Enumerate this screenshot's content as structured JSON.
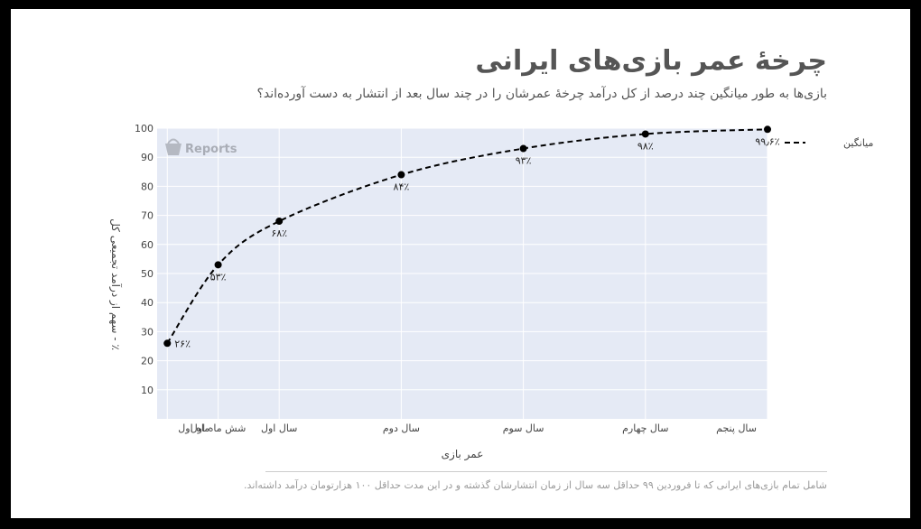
{
  "header": {
    "title": "چرخهٔ عمر بازی‌های ایرانی",
    "subtitle": "بازی‌ها به طور میانگین چند درصد از کل درآمد چرخهٔ عمرشان را در چند سال بعد از انتشار به دست آورده‌اند؟"
  },
  "watermark": {
    "text": "Reports",
    "icon": "basket-icon"
  },
  "footnote": "شامل تمام بازی‌های ایرانی که تا فروردین ۹۹ حداقل سه سال از زمان انتشارشان گذشته و در این مدت حداقل ۱۰۰ هزارتومان درآمد داشته‌اند.",
  "chart_data": {
    "type": "line",
    "title": "چرخهٔ عمر بازی‌های ایرانی",
    "xlabel": "عمر بازی",
    "ylabel": "٪ - سهم از درآمد تجمیعی کل",
    "x_months": [
      1,
      6,
      12,
      24,
      36,
      48,
      60
    ],
    "categories": [
      "ماه اول",
      "شش ماه اول",
      "سال اول",
      "سال دوم",
      "سال سوم",
      "سال چهارم",
      "سال پنجم"
    ],
    "series": [
      {
        "name": "میانگین",
        "values": [
          26,
          53,
          68,
          84,
          93,
          98,
          99.6
        ],
        "labels": [
          "۲۶٪",
          "۵۳٪",
          "۶۸٪",
          "۸۴٪",
          "۹۳٪",
          "۹۸٪",
          "۹۹٫۶٪"
        ],
        "style": "dashed",
        "color": "#000000"
      }
    ],
    "xlim": [
      0,
      60
    ],
    "ylim": [
      0,
      100
    ],
    "yticks": [
      10,
      20,
      30,
      40,
      50,
      60,
      70,
      80,
      90,
      100
    ],
    "grid": true,
    "plot_background": "#e5eaf5",
    "legend_position": "right"
  }
}
